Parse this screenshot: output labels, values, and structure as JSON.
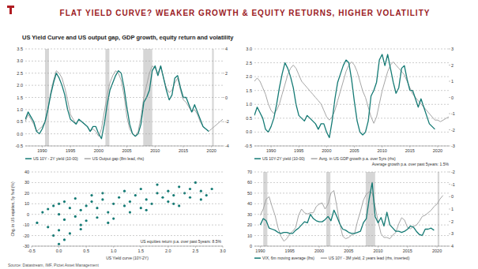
{
  "title": "FLAT YIELD CURVE? WEAKER GROWTH & EQUITY RETURNS, HIGHER VOLATILITY",
  "subtitle": "US Yield Curve and US output gap, GDP growth, equity return and volatility",
  "source": "Source: Datastream, IMF, Pictet Asset Management",
  "chart_data": [
    {
      "type": "line",
      "x": [
        1987,
        1987.5,
        1988,
        1988.5,
        1989,
        1989.5,
        1990,
        1990.5,
        1991,
        1991.5,
        1992,
        1992.5,
        1993,
        1993.5,
        1994,
        1994.5,
        1995,
        1995.5,
        1996,
        1996.5,
        1997,
        1997.5,
        1998,
        1998.5,
        1999,
        1999.5,
        2000,
        2000.5,
        2001,
        2001.5,
        2002,
        2002.5,
        2003,
        2003.5,
        2004,
        2004.5,
        2005,
        2005.5,
        2006,
        2006.5,
        2007,
        2007.5,
        2008,
        2008.5,
        2009,
        2009.5,
        2010,
        2010.5,
        2011,
        2011.5,
        2012,
        2012.5,
        2013,
        2013.5,
        2014,
        2014.5,
        2015,
        2015.5,
        2016,
        2016.5,
        2017,
        2017.5,
        2018,
        2018.5,
        2019,
        2019.5,
        2020,
        2020.5,
        2021,
        2021.5,
        2022
      ],
      "xlim": [
        1987,
        2022
      ],
      "xticks": [
        1990,
        1995,
        2000,
        2005,
        2010,
        2015,
        2020
      ],
      "ylim": [
        -0.5,
        3.5
      ],
      "yticks": [
        -0.5,
        {
          "value": 0,
          "label": "0.0"
        },
        0.5,
        {
          "value": 1,
          "label": "1.0"
        },
        1.5,
        {
          "value": 2,
          "label": "2.0"
        },
        2.5,
        {
          "value": 3,
          "label": "3.0"
        },
        3.5
      ],
      "y2lim": [
        -4,
        4
      ],
      "y2ticks": [
        -4,
        -2,
        0,
        2,
        4
      ],
      "grid": true,
      "recessions": [
        [
          1990.5,
          1991.2
        ],
        [
          2001.2,
          2001.9
        ],
        [
          2007.9,
          2009.5
        ],
        [
          2020.1,
          2020.4
        ]
      ],
      "series": [
        {
          "name": "US 10Y - 2Y yield (10-00)",
          "color": "#137a74",
          "values": [
            0.6,
            0.9,
            0.7,
            0.5,
            0.1,
            0.0,
            0.2,
            0.5,
            1.0,
            1.6,
            2.1,
            2.5,
            2.3,
            2.0,
            1.6,
            1.0,
            0.6,
            0.5,
            0.4,
            0.6,
            0.5,
            0.4,
            0.3,
            0.1,
            0.3,
            0.3,
            0.0,
            -0.2,
            0.4,
            1.2,
            1.8,
            2.1,
            2.4,
            2.6,
            2.5,
            1.9,
            1.1,
            0.4,
            0.0,
            -0.1,
            0.0,
            0.4,
            1.3,
            1.5,
            1.8,
            2.6,
            2.8,
            2.4,
            2.8,
            2.3,
            1.8,
            1.4,
            1.6,
            2.3,
            2.4,
            1.9,
            1.5,
            1.5,
            1.2,
            0.9,
            1.2,
            0.9,
            0.6,
            0.3,
            0.2,
            0.1,
            null,
            null,
            null,
            null,
            null
          ]
        },
        {
          "name": "US Output gap (8m lead, rhs)",
          "color": "#a6a6a6",
          "axis": "y2",
          "values": [
            -2.0,
            -1.4,
            -1.8,
            -2.2,
            -2.8,
            -2.6,
            -2.4,
            -2.0,
            -1.0,
            0.4,
            1.4,
            2.2,
            2.0,
            1.6,
            0.8,
            -0.2,
            -1.4,
            -1.8,
            -2.2,
            -1.8,
            -2.0,
            -2.2,
            -2.4,
            -2.8,
            -2.6,
            -2.8,
            -3.2,
            -2.6,
            -1.2,
            0.2,
            1.2,
            1.8,
            2.2,
            2.0,
            1.4,
            0.2,
            -1.6,
            -2.6,
            -3.0,
            -3.2,
            -2.8,
            -1.6,
            0.0,
            1.0,
            2.0,
            2.6,
            2.4,
            2.0,
            2.6,
            1.6,
            0.8,
            0.4,
            0.6,
            1.2,
            1.6,
            0.6,
            -0.2,
            -0.4,
            -0.8,
            -1.2,
            -1.0,
            -1.4,
            -2.0,
            -2.4,
            -2.6,
            -2.8,
            -2.6,
            -2.4,
            -2.2,
            -2.0,
            -1.8
          ]
        }
      ]
    },
    {
      "type": "line",
      "x": [
        1987,
        1987.5,
        1988,
        1988.5,
        1989,
        1989.5,
        1990,
        1990.5,
        1991,
        1991.5,
        1992,
        1992.5,
        1993,
        1993.5,
        1994,
        1994.5,
        1995,
        1995.5,
        1996,
        1996.5,
        1997,
        1997.5,
        1998,
        1998.5,
        1999,
        1999.5,
        2000,
        2000.5,
        2001,
        2001.5,
        2002,
        2002.5,
        2003,
        2003.5,
        2004,
        2004.5,
        2005,
        2005.5,
        2006,
        2006.5,
        2007,
        2007.5,
        2008,
        2008.5,
        2009,
        2009.5,
        2010,
        2010.5,
        2011,
        2011.5,
        2012,
        2012.5,
        2013,
        2013.5,
        2014,
        2014.5,
        2015,
        2015.5,
        2016,
        2016.5,
        2017,
        2017.5,
        2018,
        2018.5,
        2019,
        2019.5,
        2020,
        2020.5,
        2021,
        2021.5,
        2022
      ],
      "xlim": [
        1987,
        2022
      ],
      "xticks": [
        1990,
        1995,
        2000,
        2005,
        2010,
        2015,
        2020
      ],
      "ylim": [
        -0.5,
        3.0
      ],
      "yticks": [
        -0.5,
        {
          "value": 0,
          "label": "0.0"
        },
        0.5,
        {
          "value": 1,
          "label": "1.0"
        },
        1.5,
        {
          "value": 2,
          "label": "2.0"
        },
        2.5,
        {
          "value": 3,
          "label": "3.0"
        }
      ],
      "y2lim": [
        -3,
        3
      ],
      "y2ticks": [
        -3,
        -2,
        -1,
        0,
        1,
        2,
        3
      ],
      "grid": true,
      "annotation": "Average growth p.a. over past 5years: 1.5%",
      "series": [
        {
          "name": "US 10Y-2Y yield (10-00)",
          "color": "#137a74",
          "values": [
            0.6,
            0.9,
            0.7,
            0.5,
            0.1,
            0.0,
            0.2,
            0.5,
            1.0,
            1.6,
            2.1,
            2.5,
            2.3,
            2.0,
            1.6,
            1.0,
            0.6,
            0.5,
            0.4,
            0.6,
            0.5,
            0.4,
            0.3,
            0.1,
            0.3,
            0.3,
            0.0,
            -0.2,
            0.4,
            1.2,
            1.8,
            2.1,
            2.4,
            2.6,
            2.5,
            1.9,
            1.1,
            0.4,
            0.0,
            -0.1,
            0.0,
            0.4,
            1.3,
            1.5,
            1.8,
            2.6,
            2.8,
            2.4,
            2.8,
            2.3,
            1.8,
            1.4,
            1.6,
            2.3,
            2.4,
            1.9,
            1.5,
            1.5,
            1.2,
            0.9,
            1.2,
            0.9,
            0.6,
            0.3,
            0.2,
            0.1,
            null,
            null,
            null,
            null,
            null
          ]
        },
        {
          "name": "Avrg. in US GDP growth p.a. over 5yrs (rhs)",
          "color": "#a6a6a6",
          "axis": "y2",
          "values": [
            1.0,
            1.2,
            1.0,
            0.6,
            0.2,
            -0.4,
            -0.8,
            -1.0,
            -0.8,
            -0.4,
            0.2,
            0.8,
            1.4,
            1.8,
            2.0,
            1.8,
            1.4,
            1.0,
            0.8,
            0.6,
            0.4,
            0.2,
            0.0,
            -0.2,
            -0.4,
            -0.8,
            -1.2,
            -1.4,
            -1.2,
            -0.8,
            -0.2,
            0.4,
            1.0,
            1.6,
            2.0,
            2.2,
            2.0,
            1.6,
            1.0,
            0.4,
            0.0,
            -0.6,
            -1.2,
            -1.6,
            -1.2,
            -0.4,
            0.4,
            1.0,
            1.6,
            2.0,
            2.2,
            2.0,
            1.8,
            1.6,
            1.4,
            1.0,
            0.6,
            0.2,
            0.0,
            -0.2,
            -0.4,
            -0.6,
            -0.8,
            -1.0,
            -1.2,
            -1.4,
            -1.4,
            -1.5,
            -1.4,
            -1.3,
            -1.2
          ]
        }
      ]
    },
    {
      "type": "scatter",
      "x": [
        -0.4,
        -0.3,
        -0.2,
        -0.2,
        -0.1,
        -0.1,
        0.0,
        0.0,
        0.0,
        0.1,
        0.1,
        0.2,
        0.2,
        0.3,
        0.3,
        0.4,
        0.4,
        0.5,
        0.5,
        0.6,
        0.6,
        0.7,
        0.7,
        0.8,
        0.8,
        0.9,
        1.0,
        1.0,
        1.1,
        1.2,
        1.2,
        1.3,
        1.4,
        1.5,
        1.5,
        1.6,
        1.7,
        1.8,
        1.8,
        1.9,
        2.0,
        2.0,
        2.1,
        2.2,
        2.2,
        2.3,
        2.4,
        2.4,
        2.5,
        2.6,
        2.6,
        2.7,
        2.8,
        0.1,
        0.4,
        0.9,
        1.6,
        2.1,
        0.0,
        1.3
      ],
      "values": [
        -8,
        2,
        -12,
        5,
        -20,
        8,
        -15,
        0,
        10,
        -5,
        12,
        -18,
        6,
        -2,
        15,
        -10,
        4,
        8,
        -6,
        12,
        18,
        -3,
        6,
        14,
        20,
        2,
        10,
        -4,
        16,
        8,
        22,
        12,
        18,
        6,
        24,
        14,
        10,
        20,
        28,
        16,
        12,
        22,
        18,
        26,
        8,
        20,
        16,
        24,
        30,
        14,
        22,
        18,
        24,
        -24,
        -14,
        -8,
        4,
        10,
        -28,
        2
      ],
      "color": "#137a74",
      "marker": "circle",
      "xlim": [
        -0.5,
        3.0
      ],
      "xticks": [
        -0.5,
        {
          "value": 0,
          "label": "0.0"
        },
        0.5,
        {
          "value": 1,
          "label": "1.0"
        },
        1.5,
        {
          "value": 2,
          "label": "2.0"
        },
        2.5,
        {
          "value": 3,
          "label": "3.0"
        }
      ],
      "ylim": [
        -30,
        40
      ],
      "yticks": [
        -30,
        -20,
        -10,
        0,
        10,
        20,
        30,
        40
      ],
      "grid": true,
      "xlabel": "US Yield curve (10Y-2Y)",
      "ylabel": "Chg. in US equities, 5y fwd (%)",
      "annotation": "US equities return p.a. over past 5years: 8.5%"
    },
    {
      "type": "line",
      "x": [
        1990,
        1990.5,
        1991,
        1991.5,
        1992,
        1992.5,
        1993,
        1993.5,
        1994,
        1994.5,
        1995,
        1995.5,
        1996,
        1996.5,
        1997,
        1997.5,
        1998,
        1998.5,
        1999,
        1999.5,
        2000,
        2000.5,
        2001,
        2001.5,
        2002,
        2002.5,
        2003,
        2003.5,
        2004,
        2004.5,
        2005,
        2005.5,
        2006,
        2006.5,
        2007,
        2007.5,
        2008,
        2008.5,
        2009,
        2009.5,
        2010,
        2010.5,
        2011,
        2011.5,
        2012,
        2012.5,
        2013,
        2013.5,
        2014,
        2014.5,
        2015,
        2015.5,
        2016,
        2016.5,
        2017,
        2017.5,
        2018,
        2018.5,
        2019,
        2019.5,
        2020,
        2020.5,
        2021
      ],
      "xlim": [
        1989,
        2022
      ],
      "xticks": [
        1990,
        1995,
        2000,
        2005,
        2010,
        2015,
        2020
      ],
      "ylim": [
        0,
        70
      ],
      "yticks": [
        0,
        10,
        20,
        30,
        40,
        50,
        60,
        70
      ],
      "y2lim": [
        4,
        -2
      ],
      "y2ticks": [
        -2,
        -1,
        0,
        1,
        2,
        3,
        4
      ],
      "grid": true,
      "recessions": [
        [
          1990.5,
          1991.2
        ],
        [
          2001.2,
          2001.9
        ],
        [
          2007.9,
          2009.5
        ],
        [
          2020.1,
          2020.4
        ]
      ],
      "series": [
        {
          "name": "VIX, 6m moving average (lhs)",
          "color": "#137a74",
          "values": [
            20,
            26,
            24,
            17,
            16,
            15,
            13,
            12,
            13,
            13,
            12,
            12,
            15,
            17,
            20,
            23,
            22,
            30,
            26,
            24,
            23,
            23,
            25,
            28,
            24,
            34,
            28,
            21,
            16,
            15,
            13,
            12,
            12,
            13,
            14,
            22,
            26,
            45,
            60,
            28,
            22,
            27,
            19,
            32,
            20,
            17,
            14,
            14,
            13,
            14,
            16,
            19,
            18,
            14,
            11,
            10,
            16,
            16,
            17,
            15,
            null,
            null,
            null
          ]
        },
        {
          "name": "US 10Y - 3M yield, 2 years lead (rhs, inverted)",
          "color": "#a6a6a6",
          "axis": "y2",
          "values": [
            1.5,
            1.0,
            0.2,
            0.0,
            0.8,
            1.5,
            2.5,
            3.2,
            3.6,
            3.4,
            3.0,
            2.8,
            2.5,
            1.5,
            1.0,
            1.3,
            1.4,
            1.3,
            1.3,
            0.8,
            0.6,
            0.5,
            1.0,
            0.6,
            -0.3,
            -0.5,
            0.8,
            2.2,
            3.2,
            3.4,
            3.3,
            3.1,
            3.0,
            2.0,
            1.2,
            0.3,
            -0.2,
            -0.4,
            -0.3,
            0.8,
            2.0,
            3.0,
            3.3,
            3.3,
            3.4,
            3.1,
            2.9,
            2.2,
            1.7,
            1.9,
            2.5,
            2.6,
            2.4,
            2.3,
            2.0,
            1.6,
            1.5,
            1.3,
            1.1,
            0.8,
            0.6,
            0.2,
            -0.1
          ]
        }
      ]
    }
  ]
}
